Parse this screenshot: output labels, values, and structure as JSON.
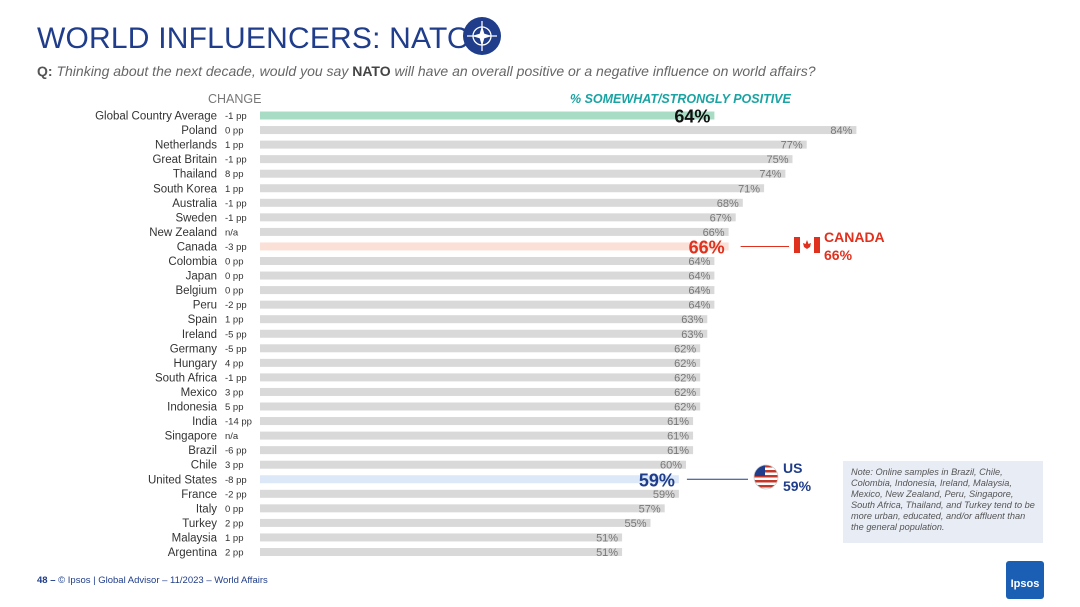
{
  "header": {
    "title": "WORLD INFLUENCERS: NATO",
    "subtitle_q": "Q:",
    "subtitle_pre": "Thinking about the next decade, would you say",
    "subtitle_bold": "NATO",
    "subtitle_post": "will have an overall positive or a negative influence on world affairs?",
    "change_header": "CHANGE",
    "positive_header": "% SOMEWHAT/STRONGLY POSITIVE"
  },
  "chart_data": {
    "type": "bar",
    "orientation": "horizontal",
    "xlim": [
      0,
      100
    ],
    "categories": [
      "Global Country Average",
      "Poland",
      "Netherlands",
      "Great Britain",
      "Thailand",
      "South Korea",
      "Australia",
      "Sweden",
      "New Zealand",
      "Canada",
      "Colombia",
      "Japan",
      "Belgium",
      "Peru",
      "Spain",
      "Ireland",
      "Germany",
      "Hungary",
      "South Africa",
      "Mexico",
      "Indonesia",
      "India",
      "Singapore",
      "Brazil",
      "Chile",
      "United States",
      "France",
      "Italy",
      "Turkey",
      "Malaysia",
      "Argentina"
    ],
    "values": [
      64,
      84,
      77,
      75,
      74,
      71,
      68,
      67,
      66,
      66,
      64,
      64,
      64,
      64,
      63,
      63,
      62,
      62,
      62,
      62,
      62,
      61,
      61,
      61,
      60,
      59,
      59,
      57,
      55,
      51,
      51
    ],
    "value_labels": [
      "64%",
      "84%",
      "77%",
      "75%",
      "74%",
      "71%",
      "68%",
      "67%",
      "66%",
      "66%",
      "64%",
      "64%",
      "64%",
      "64%",
      "63%",
      "63%",
      "62%",
      "62%",
      "62%",
      "62%",
      "62%",
      "61%",
      "61%",
      "61%",
      "60%",
      "59%",
      "59%",
      "57%",
      "55%",
      "51%",
      "51%"
    ],
    "change": [
      "-1 pp",
      "0 pp",
      "1 pp",
      "-1 pp",
      "8 pp",
      "1 pp",
      "-1 pp",
      "-1 pp",
      "n/a",
      "-3 pp",
      "0 pp",
      "0 pp",
      "0 pp",
      "-2 pp",
      "1 pp",
      "-5 pp",
      "-5 pp",
      "4 pp",
      "-1 pp",
      "3 pp",
      "5 pp",
      "-14 pp",
      "n/a",
      "-6 pp",
      "3 pp",
      "-8 pp",
      "-2 pp",
      "0 pp",
      "2 pp",
      "1 pp",
      "2 pp"
    ],
    "change_color": [
      "n",
      "n",
      "n",
      "n",
      "up",
      "n",
      "n",
      "n",
      "n",
      "n",
      "n",
      "n",
      "n",
      "n",
      "n",
      "down",
      "down",
      "up",
      "n",
      "n",
      "up",
      "down",
      "n",
      "down",
      "n",
      "down",
      "n",
      "n",
      "n",
      "n",
      "n"
    ],
    "highlight": [
      "global",
      "",
      "",
      "",
      "",
      "",
      "",
      "",
      "",
      "canada",
      "",
      "",
      "",
      "",
      "",
      "",
      "",
      "",
      "",
      "",
      "",
      "",
      "",
      "",
      "",
      "us",
      "",
      "",
      "",
      "",
      ""
    ]
  },
  "callouts": {
    "canada_name": "CANADA",
    "canada_value": "66%",
    "us_name": "US",
    "us_value": "59%"
  },
  "colors": {
    "bar": "#d9d9d9",
    "global_bar": "#a8dcc5",
    "canada_bar": "#fbe0d8",
    "us_bar": "#dce8f7",
    "canada_text": "#e0301e",
    "us_text": "#1f3d8a",
    "up": "#1aa3a3",
    "down": "#c0392b"
  },
  "note": "Note: Online samples in Brazil, Chile, Colombia, Indonesia, Ireland, Malaysia, Mexico, New Zealand, Peru, Singapore, South Africa, Thailand, and Turkey tend to be more urban, educated, and/or affluent than the general population.",
  "footer": {
    "page": "48 –",
    "text": "© Ipsos | Global Advisor – 11/2023 – World Affairs"
  },
  "logo": {
    "text": "Ipsos"
  }
}
